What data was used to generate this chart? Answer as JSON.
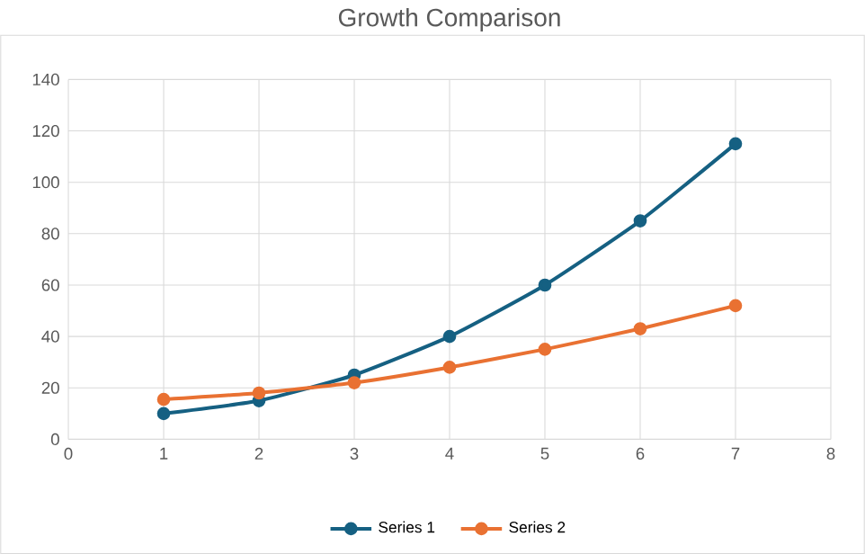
{
  "chart_data": {
    "type": "line",
    "title": "Growth Comparison",
    "x": [
      1,
      2,
      3,
      4,
      5,
      6,
      7
    ],
    "series": [
      {
        "name": "Series 1",
        "color": "#156082",
        "values": [
          10,
          15,
          25,
          40,
          60,
          85,
          115
        ]
      },
      {
        "name": "Series 2",
        "color": "#e97132",
        "values": [
          15.5,
          18,
          22,
          28,
          35,
          43,
          52
        ]
      }
    ],
    "xlim": [
      0,
      8
    ],
    "xticks": [
      0,
      1,
      2,
      3,
      4,
      5,
      6,
      7,
      8
    ],
    "ylim": [
      0,
      140
    ],
    "yticks": [
      0,
      20,
      40,
      60,
      80,
      100,
      120,
      140
    ],
    "grid": true,
    "legend": "bottom",
    "marker": "circle",
    "line_style": "solid"
  }
}
